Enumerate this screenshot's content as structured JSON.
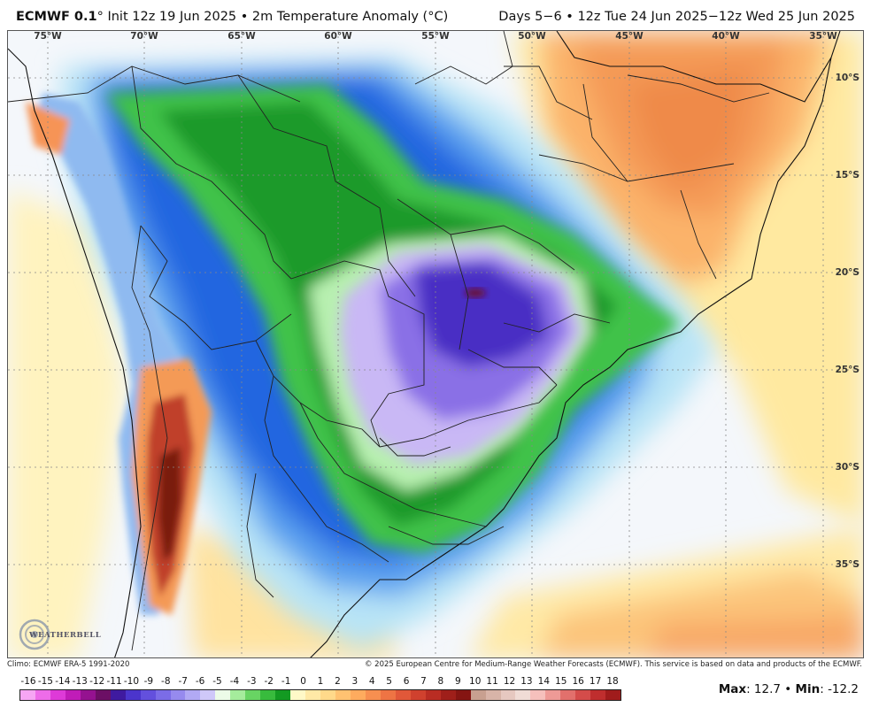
{
  "header": {
    "model": "ECMWF 0.1",
    "degree_symbol": "°",
    "init_text": " Init 12z 19 Jun 2025 • 2m Temperature Anomaly (°C)",
    "valid_text": "Days 5−6 • 12z Tue 24 Jun 2025−12z Wed 25 Jun 2025"
  },
  "map": {
    "lon_labels": [
      "75°W",
      "70°W",
      "65°W",
      "60°W",
      "55°W",
      "50°W",
      "45°W",
      "40°W",
      "35°W"
    ],
    "lat_labels": [
      "10°S",
      "15°S",
      "20°S",
      "25°S",
      "30°S",
      "35°S"
    ],
    "colors": {
      "ocean_light": "#f4f7fb",
      "land_light": "#eef3fb",
      "warm_light": "#fff3b0",
      "warm_orange": "#fbb36a",
      "warm_deep": "#ef8a4a",
      "hot": "#c0402a",
      "hot_dark": "#7a1a10",
      "cool_light": "#b8e4f6",
      "cool_mid": "#5aa0ef",
      "cool_deep": "#2466e0",
      "green_light": "#b8f0b0",
      "green_mid": "#40c24a",
      "green_deep": "#1a9a2a",
      "violet_light": "#c9b8f5",
      "violet_mid": "#8a70e6",
      "violet_deep": "#4a2ec4",
      "maroon": "#6a0a30"
    }
  },
  "logo": {
    "text": "WEATHERBELL"
  },
  "footer": {
    "climo": "Climo: ECMWF ERA-5 1991-2020",
    "copyright": "© 2025 European Centre for Medium-Range Weather Forecasts (ECMWF). This service is based on data and products of the ECMWF."
  },
  "scale": {
    "labels": [
      "-16",
      "-15",
      "-14",
      "-13",
      "-12",
      "-11",
      "-10",
      "-9",
      "-8",
      "-7",
      "-6",
      "-5",
      "-4",
      "-3",
      "-2",
      "-1",
      "0",
      "1",
      "2",
      "3",
      "4",
      "5",
      "6",
      "7",
      "8",
      "9",
      "10",
      "11",
      "12",
      "13",
      "14",
      "15",
      "16",
      "17",
      "18"
    ],
    "colors": [
      "#f27ef0",
      "#e64ee4",
      "#d21ad0",
      "#a3139f",
      "#73106d",
      "#3a1fa8",
      "#4a37d0",
      "#6150e0",
      "#7b6ce8",
      "#9c8ff0",
      "#b8b0f5",
      "#d6d0fa",
      "#b4f0ae",
      "#7fdd7a",
      "#4ec54d",
      "#22a62a",
      "#0a8a18",
      "#78c6f2",
      "#4aa8ea",
      "#3486e4",
      "#2466e0",
      "#1b45c8",
      "#f8fcff",
      "#fff7c4",
      "#ffe79a",
      "#fdd07c",
      "#fbb36a",
      "#f69456",
      "#ef7544",
      "#e05536",
      "#c83a2a",
      "#a82418",
      "#8a140e",
      "#6e0d0a",
      "#5a0a08"
    ],
    "bar_colors": [
      "#f7a6f4",
      "#ee6ce9",
      "#de3ad8",
      "#c01cb8",
      "#951290",
      "#6c0f65",
      "#3f1aa0",
      "#4b35cc",
      "#6350dd",
      "#7b6ce7",
      "#968aee",
      "#b1a9f4",
      "#cfc8f9",
      "#ecfbe8",
      "#a5ec9c",
      "#68d463",
      "#38bb3d",
      "#139a22",
      "#fff9c8",
      "#ffe9a6",
      "#ffd98a",
      "#ffc271",
      "#feab5e",
      "#f78f50",
      "#ee7444",
      "#e15839",
      "#d0412e",
      "#b92d23",
      "#9f1f1a",
      "#851512",
      "#c8a090",
      "#d8b4a8",
      "#e6c8c0",
      "#f0dcd6",
      "#f6c0bc",
      "#ee9a96",
      "#e2706c",
      "#d44c4a",
      "#bf2e2e",
      "#a01c1c"
    ]
  },
  "stats": {
    "max_label": "Max",
    "max_value": "12.7",
    "separator": " • ",
    "min_label": "Min",
    "min_value": "-12.2"
  }
}
